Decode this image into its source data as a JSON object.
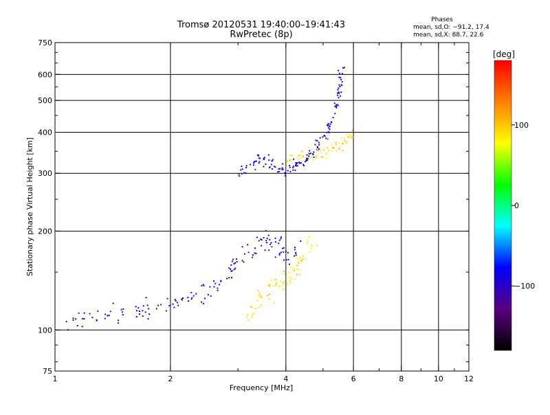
{
  "chart_data": {
    "type": "scatter",
    "title": "Tromsø 20120531 19:40:00–19:41:43",
    "subtitle": "RwPretec (8p)",
    "xlabel": "Frequency [MHz]",
    "ylabel": "Stationary phase Virtual Height [km]",
    "x_scale": "log",
    "y_scale": "log",
    "xlim": [
      1,
      12
    ],
    "ylim": [
      75,
      750
    ],
    "x_ticks": [
      1,
      2,
      4,
      6,
      8,
      10,
      12
    ],
    "y_ticks": [
      75,
      100,
      200,
      300,
      400,
      500,
      600,
      750
    ],
    "grid": true,
    "stats": {
      "heading": "Phases",
      "line1": "mean, sd,O: −91.2, 17.4",
      "line2": "mean, sd,X: 88.7, 22.6"
    },
    "colorbar": {
      "label": "[deg]",
      "range": [
        -180,
        180
      ],
      "tick_values": [
        100,
        0,
        -100
      ],
      "tick_labels": [
        "100",
        "0",
        "−100"
      ],
      "colors": [
        "#000000",
        "#5a0080",
        "#0000ff",
        "#00ffff",
        "#00ff00",
        "#ffff00",
        "#ff8000",
        "#ff0000"
      ]
    },
    "series": [
      {
        "mode": "O",
        "phase_mean": -91.2,
        "phase_sd": 17.4,
        "trace": [
          [
            1.05,
            105
          ],
          [
            1.2,
            108
          ],
          [
            1.35,
            112
          ],
          [
            1.5,
            112
          ],
          [
            1.7,
            115
          ],
          [
            1.9,
            118
          ],
          [
            2.1,
            122
          ],
          [
            2.3,
            126
          ],
          [
            2.5,
            131
          ],
          [
            2.7,
            140
          ],
          [
            2.9,
            152
          ],
          [
            3.1,
            168
          ],
          [
            3.3,
            180
          ],
          [
            3.5,
            188
          ],
          [
            3.7,
            185
          ],
          [
            3.9,
            176
          ],
          [
            4.1,
            170
          ],
          [
            4.3,
            175
          ]
        ],
        "f_layer": [
          [
            3.0,
            300
          ],
          [
            3.2,
            318
          ],
          [
            3.4,
            330
          ],
          [
            3.6,
            330
          ],
          [
            3.8,
            312
          ],
          [
            4.0,
            305
          ],
          [
            4.2,
            312
          ],
          [
            4.4,
            322
          ],
          [
            4.6,
            338
          ],
          [
            4.8,
            358
          ],
          [
            5.0,
            378
          ],
          [
            5.2,
            410
          ],
          [
            5.35,
            455
          ],
          [
            5.45,
            505
          ],
          [
            5.55,
            560
          ],
          [
            5.6,
            620
          ]
        ]
      },
      {
        "mode": "X",
        "phase_mean": 88.7,
        "phase_sd": 22.6,
        "trace": [
          [
            3.1,
            108
          ],
          [
            3.3,
            118
          ],
          [
            3.5,
            126
          ],
          [
            3.7,
            133
          ],
          [
            3.9,
            140
          ],
          [
            4.1,
            147
          ],
          [
            4.3,
            158
          ],
          [
            4.5,
            168
          ],
          [
            4.7,
            178
          ]
        ],
        "f_layer": [
          [
            4.0,
            330
          ],
          [
            4.4,
            338
          ],
          [
            4.8,
            345
          ],
          [
            5.2,
            352
          ],
          [
            5.5,
            362
          ],
          [
            5.8,
            380
          ],
          [
            6.0,
            395
          ]
        ]
      }
    ]
  }
}
